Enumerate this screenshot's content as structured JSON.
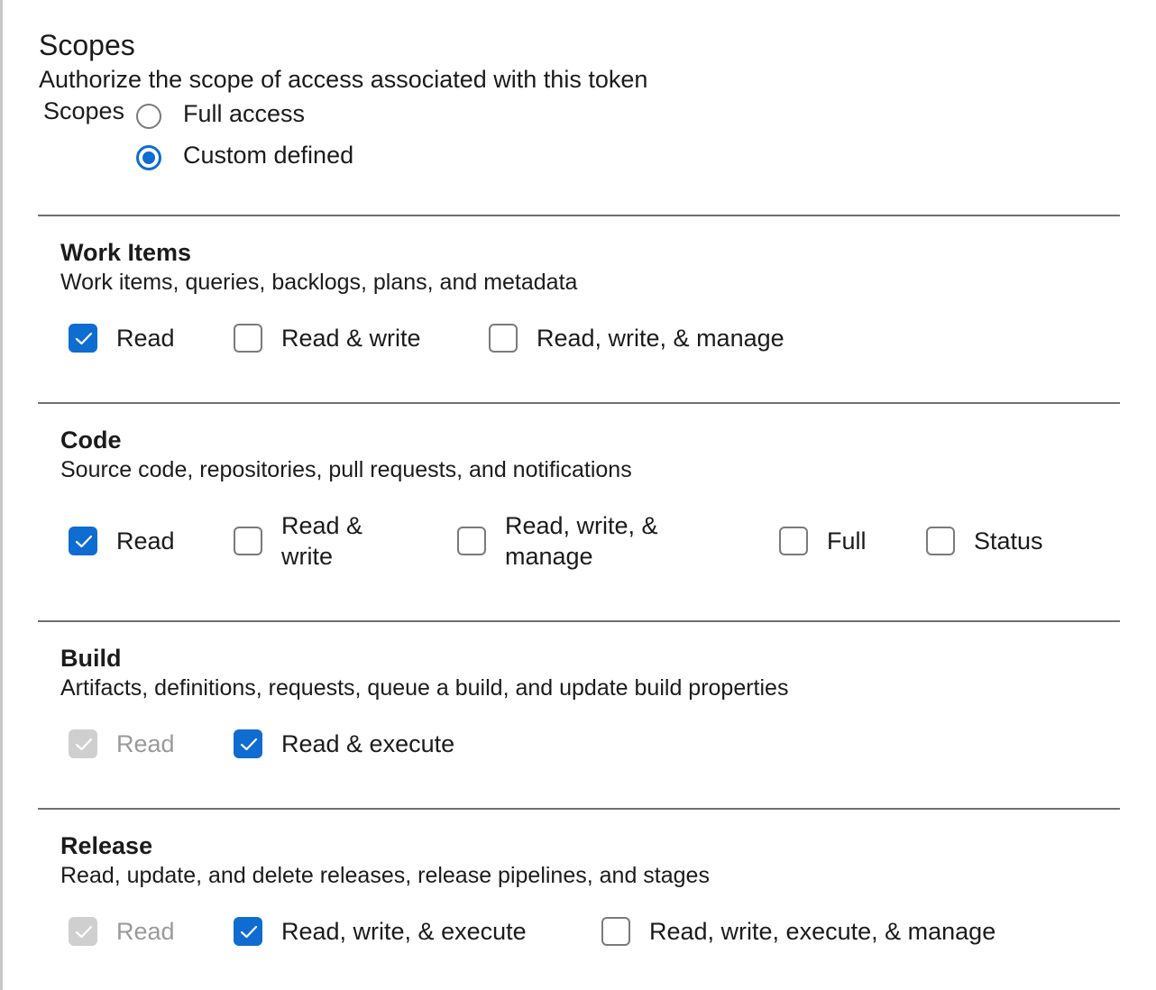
{
  "header": {
    "title": "Scopes",
    "subtitle": "Authorize the scope of access associated with this token"
  },
  "scopes": {
    "label": "Scopes",
    "options": [
      {
        "label": "Full access",
        "selected": false
      },
      {
        "label": "Custom defined",
        "selected": true
      }
    ]
  },
  "accent": "#0f6cd0",
  "sections": [
    {
      "name": "Work Items",
      "description": "Work items, queries, backlogs, plans, and metadata",
      "options": [
        {
          "label": "Read",
          "checked": true,
          "disabled": false
        },
        {
          "label": "Read & write",
          "checked": false,
          "disabled": false
        },
        {
          "label": "Read, write, & manage",
          "checked": false,
          "disabled": false
        }
      ]
    },
    {
      "name": "Code",
      "description": "Source code, repositories, pull requests, and notifications",
      "options": [
        {
          "label": "Read",
          "checked": true,
          "disabled": false
        },
        {
          "label": "Read &\nwrite",
          "checked": false,
          "disabled": false
        },
        {
          "label": "Read, write, &\nmanage",
          "checked": false,
          "disabled": false
        },
        {
          "label": "Full",
          "checked": false,
          "disabled": false
        },
        {
          "label": "Status",
          "checked": false,
          "disabled": false
        }
      ]
    },
    {
      "name": "Build",
      "description": "Artifacts, definitions, requests, queue a build, and update build properties",
      "options": [
        {
          "label": "Read",
          "checked": true,
          "disabled": true
        },
        {
          "label": "Read & execute",
          "checked": true,
          "disabled": false
        }
      ]
    },
    {
      "name": "Release",
      "description": "Read, update, and delete releases, release pipelines, and stages",
      "options": [
        {
          "label": "Read",
          "checked": true,
          "disabled": true
        },
        {
          "label": "Read, write, & execute",
          "checked": true,
          "disabled": false
        },
        {
          "label": "Read, write, execute, & manage",
          "checked": false,
          "disabled": false
        }
      ]
    }
  ]
}
